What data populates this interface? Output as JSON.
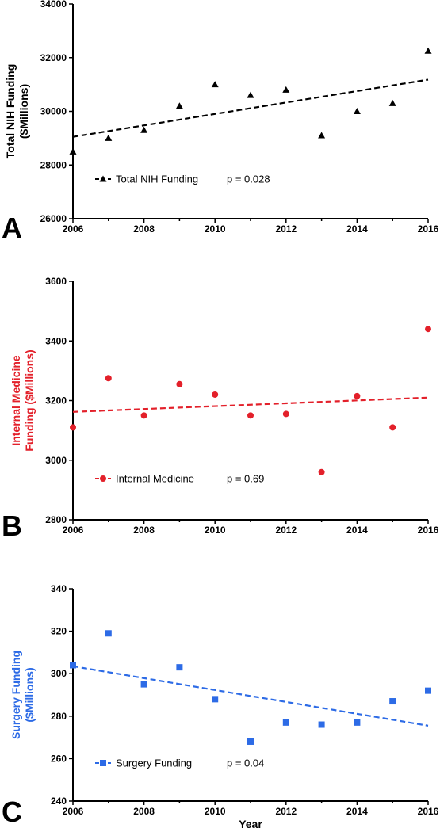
{
  "chart_data": [
    {
      "type": "scatter",
      "panel_letter": "A",
      "x": [
        2006,
        2007,
        2008,
        2009,
        2010,
        2011,
        2012,
        2013,
        2014,
        2015,
        2016
      ],
      "series": [
        {
          "name": "Total NIH Funding",
          "marker": "triangle",
          "color": "#000000",
          "values": [
            28500,
            29000,
            29300,
            30200,
            31000,
            30600,
            30800,
            29100,
            30000,
            30300,
            32250
          ]
        }
      ],
      "trendline": {
        "style": "dashed",
        "from": [
          2006,
          29050
        ],
        "to": [
          2016,
          31180
        ]
      },
      "annotation": "p = 0.028",
      "ylabel": [
        "Total NIH Funding",
        "($Millions)"
      ],
      "ylabel_color": "#000000",
      "xlabel": "",
      "xlim": [
        2006,
        2016
      ],
      "ylim": [
        26000,
        34000
      ],
      "xticks": [
        2006,
        2008,
        2010,
        2012,
        2014,
        2016
      ],
      "yticks": [
        26000,
        28000,
        30000,
        32000,
        34000
      ],
      "grid": false,
      "legend_position": "bottom-left"
    },
    {
      "type": "scatter",
      "panel_letter": "B",
      "x": [
        2006,
        2007,
        2008,
        2009,
        2010,
        2011,
        2012,
        2013,
        2014,
        2015,
        2016
      ],
      "series": [
        {
          "name": "Internal Medicine",
          "marker": "circle",
          "color": "#e3202a",
          "values": [
            3110,
            3275,
            3150,
            3255,
            3220,
            3150,
            3155,
            2960,
            3215,
            3110,
            3440
          ]
        }
      ],
      "trendline": {
        "style": "dashed",
        "from": [
          2006,
          3162
        ],
        "to": [
          2016,
          3210
        ]
      },
      "annotation": "p = 0.69",
      "ylabel": [
        "Internal Medicine",
        "Funding ($Millions)"
      ],
      "ylabel_color": "#e3202a",
      "xlabel": "",
      "xlim": [
        2006,
        2016
      ],
      "ylim": [
        2800,
        3600
      ],
      "xticks": [
        2006,
        2008,
        2010,
        2012,
        2014,
        2016
      ],
      "yticks": [
        2800,
        3000,
        3200,
        3400,
        3600
      ],
      "grid": false,
      "legend_position": "bottom-left"
    },
    {
      "type": "scatter",
      "panel_letter": "C",
      "x": [
        2006,
        2007,
        2008,
        2009,
        2010,
        2011,
        2012,
        2013,
        2014,
        2015,
        2016
      ],
      "series": [
        {
          "name": "Surgery Funding",
          "marker": "square",
          "color": "#2d6be6",
          "values": [
            304,
            319,
            295,
            303,
            288,
            268,
            277,
            276,
            277,
            287,
            292
          ]
        }
      ],
      "trendline": {
        "style": "dashed",
        "from": [
          2006,
          303.5
        ],
        "to": [
          2016,
          275.5
        ]
      },
      "annotation": "p = 0.04",
      "ylabel": [
        "Surgery Funding",
        "($Millions)"
      ],
      "ylabel_color": "#2d6be6",
      "xlabel": "Year",
      "xlim": [
        2006,
        2016
      ],
      "ylim": [
        240,
        340
      ],
      "xticks": [
        2006,
        2008,
        2010,
        2012,
        2014,
        2016
      ],
      "yticks": [
        240,
        260,
        280,
        300,
        320,
        340
      ],
      "grid": false,
      "legend_position": "bottom-left"
    }
  ]
}
